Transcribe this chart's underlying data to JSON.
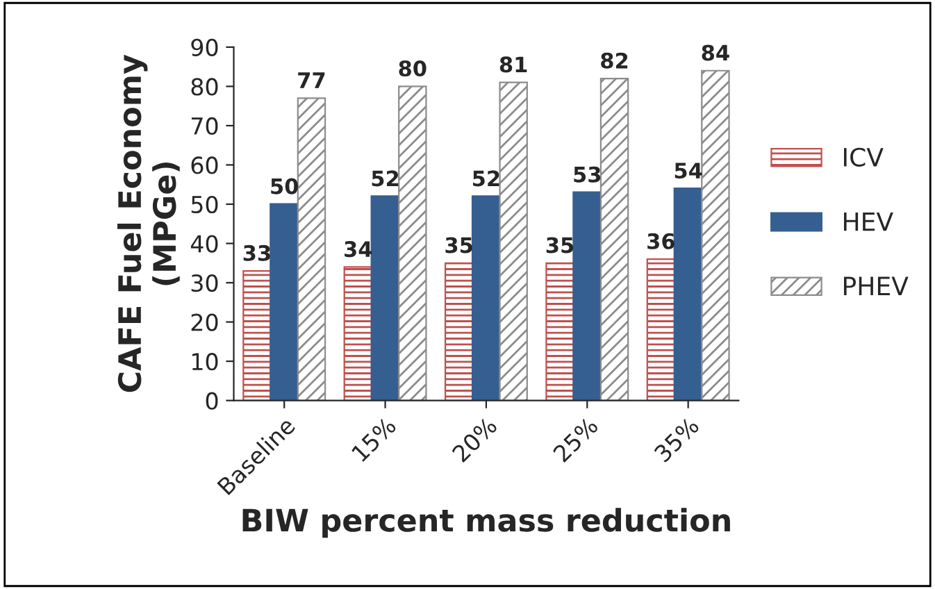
{
  "chart_data": {
    "type": "bar",
    "xlabel": "BIW percent mass reduction",
    "ylabel": "CAFE Fuel Economy\n(MPGe)",
    "categories": [
      "Baseline",
      "15%",
      "20%",
      "25%",
      "35%"
    ],
    "series": [
      {
        "name": "ICV",
        "color": "#c0504d",
        "values": [
          33,
          34,
          35,
          35,
          36
        ]
      },
      {
        "name": "HEV",
        "color": "#365f91",
        "values": [
          50,
          52,
          52,
          53,
          54
        ]
      },
      {
        "name": "PHEV",
        "color": "#8c8c8c",
        "values": [
          77,
          80,
          81,
          82,
          84
        ]
      }
    ],
    "ylim": [
      0,
      90
    ],
    "yticks": [
      0,
      10,
      20,
      30,
      40,
      50,
      60,
      70,
      80,
      90
    ],
    "data_labels": true,
    "legend": "right",
    "grid": false
  }
}
